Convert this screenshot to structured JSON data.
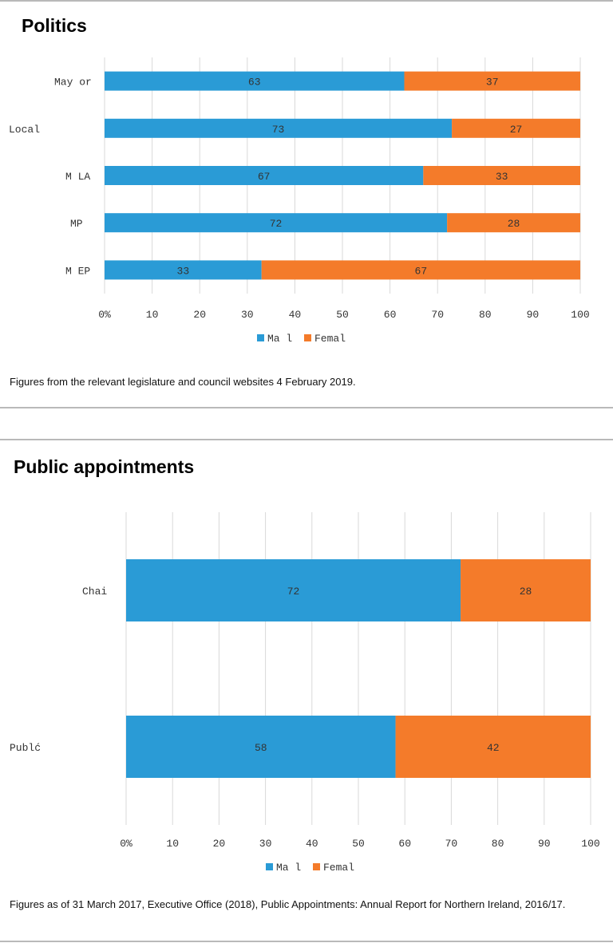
{
  "sections": [
    {
      "heading": "Politics",
      "note": "Figures from the relevant legislature and council websites 4 February 2019."
    },
    {
      "heading": "Public appointments",
      "note": "Figures as of 31 March 2017, Executive Office (2018), Public Appointments: Annual Report for Northern Ireland, 2016/17."
    }
  ],
  "colors": {
    "male": "#2a9bd6",
    "female": "#f47b2a",
    "grid": "#d9d9d9",
    "rule": "#b9b9b9"
  },
  "chart_data": [
    {
      "type": "bar",
      "orientation": "horizontal",
      "stacked": true,
      "categories": [
        "May or",
        "Local",
        "M LA",
        "MP",
        "M EP"
      ],
      "series": [
        {
          "name": "Ma l",
          "values": [
            63,
            73,
            67,
            72,
            33
          ]
        },
        {
          "name": "Femal",
          "values": [
            37,
            27,
            33,
            28,
            67
          ]
        }
      ],
      "xlim": [
        0,
        100
      ],
      "x_ticks": [
        "0%",
        "10",
        "20",
        "30",
        "40",
        "50",
        "60",
        "70",
        "80",
        "90",
        "100"
      ],
      "grid": true,
      "legend": "bottom",
      "data_labels": true
    },
    {
      "type": "bar",
      "orientation": "horizontal",
      "stacked": true,
      "categories": [
        "Chai",
        "Publć"
      ],
      "series": [
        {
          "name": "Ma l",
          "values": [
            72,
            58
          ]
        },
        {
          "name": "Femal",
          "values": [
            28,
            42
          ]
        }
      ],
      "xlim": [
        0,
        100
      ],
      "x_ticks": [
        "0%",
        "10",
        "20",
        "30",
        "40",
        "50",
        "60",
        "70",
        "80",
        "90",
        "100"
      ],
      "grid": true,
      "legend": "bottom",
      "data_labels": true
    }
  ]
}
